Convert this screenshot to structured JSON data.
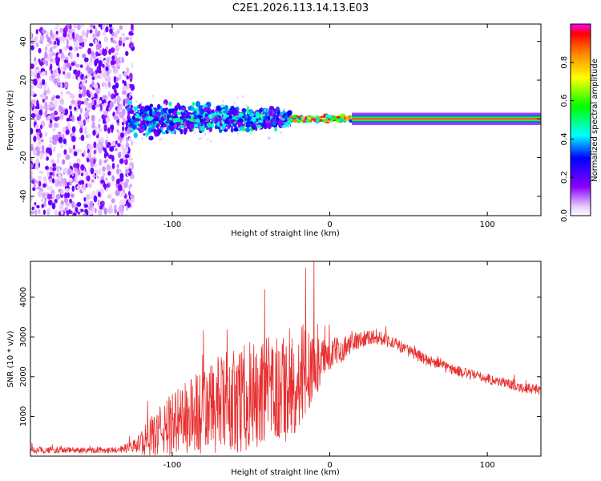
{
  "figure_title": "C2E1.2026.113.14.13.E03",
  "chart_data": [
    {
      "type": "heatmap",
      "name": "spectrogram",
      "xlabel": "Height of straight line (km)",
      "ylabel": "Frequency (Hz)",
      "xlim": [
        -190,
        134
      ],
      "ylim": [
        -50,
        49
      ],
      "xticks": [
        -100,
        0,
        100
      ],
      "yticks": [
        -40,
        -20,
        0,
        20,
        40
      ],
      "colorbar": {
        "label": "Normalized spectral amplitude",
        "range": [
          0.0,
          1.0
        ],
        "ticks": [
          0.0,
          0.2,
          0.4,
          0.6,
          0.8
        ]
      },
      "regions": [
        {
          "x_from": -190,
          "x_to": -125,
          "description_level": 0.1,
          "freq_spread": 49
        },
        {
          "x_from": -128,
          "x_to": -25,
          "description_level": 0.35,
          "freq_spread": 9
        },
        {
          "x_from": -25,
          "x_to": 14,
          "description_level": 0.85,
          "freq_spread": 2
        },
        {
          "x_from": 14,
          "x_to": 134,
          "description_level": 0.95,
          "freq_spread": 1
        }
      ]
    },
    {
      "type": "line",
      "name": "snr",
      "xlabel": "Height of straight line (km)",
      "ylabel": "SNR (10 * v/v)",
      "xlim": [
        -190,
        134
      ],
      "ylim": [
        0,
        4900
      ],
      "xticks": [
        -100,
        0,
        100
      ],
      "yticks": [
        1000,
        2000,
        3000,
        4000
      ],
      "series": [
        {
          "name": "SNR",
          "color": "#e83030",
          "x": [
            -190,
            -170,
            -150,
            -135,
            -125,
            -115,
            -105,
            -95,
            -85,
            -75,
            -65,
            -55,
            -45,
            -35,
            -25,
            -18,
            -10,
            -5,
            0,
            5,
            10,
            15,
            20,
            25,
            30,
            35,
            40,
            50,
            60,
            70,
            80,
            90,
            100,
            110,
            120,
            134
          ],
          "base": [
            150,
            150,
            150,
            160,
            230,
            450,
            700,
            900,
            1050,
            1200,
            1350,
            1450,
            1500,
            1600,
            1800,
            2000,
            2200,
            2400,
            2550,
            2650,
            2750,
            2850,
            2950,
            3000,
            3000,
            2950,
            2850,
            2650,
            2450,
            2300,
            2150,
            2050,
            1950,
            1850,
            1750,
            1650
          ],
          "amp": [
            80,
            80,
            80,
            80,
            150,
            450,
            700,
            900,
            1100,
            1200,
            1300,
            1350,
            1400,
            1450,
            1450,
            1400,
            900,
            600,
            400,
            350,
            300,
            250,
            220,
            200,
            200,
            180,
            170,
            150,
            150,
            140,
            140,
            130,
            130,
            130,
            130,
            130
          ]
        }
      ]
    }
  ]
}
